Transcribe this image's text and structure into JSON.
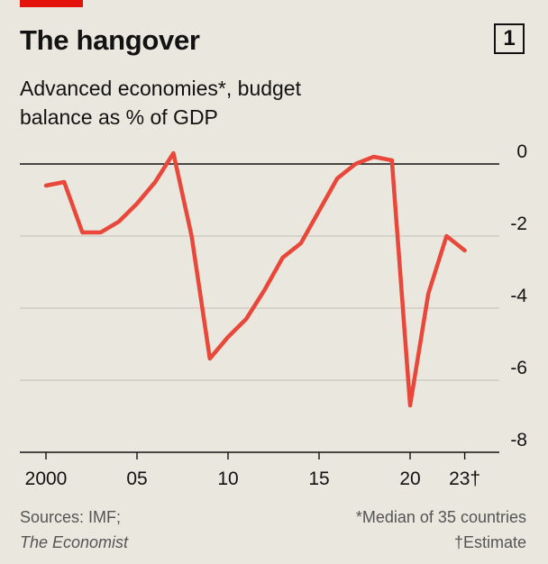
{
  "header": {
    "title": "The hangover",
    "badge": "1",
    "subtitle_line1": "Advanced economies*, budget",
    "subtitle_line2": "balance as % of GDP"
  },
  "footer": {
    "source_line1": "Sources: IMF;",
    "source_line2": "The Economist",
    "note_line1": "*Median of 35 countries",
    "note_line2": "†Estimate"
  },
  "colors": {
    "line": "#e8473a",
    "accent_tag": "#e3120b",
    "background": "#e9e7de",
    "gridline": "#c9c7bf",
    "zero_line": "#121212"
  },
  "chart_data": {
    "type": "line",
    "title": "The hangover",
    "subtitle": "Advanced economies*, budget balance as % of GDP",
    "xlabel": "",
    "ylabel": "",
    "x": [
      2000,
      2001,
      2002,
      2003,
      2004,
      2005,
      2006,
      2007,
      2008,
      2009,
      2010,
      2011,
      2012,
      2013,
      2014,
      2015,
      2016,
      2017,
      2018,
      2019,
      2020,
      2021,
      2022,
      2023
    ],
    "series": [
      {
        "name": "",
        "values": [
          -0.6,
          -0.5,
          -1.9,
          -1.9,
          -1.6,
          -1.1,
          -0.5,
          0.3,
          -2.0,
          -5.4,
          -4.8,
          -4.3,
          -3.5,
          -2.6,
          -2.2,
          -1.3,
          -0.4,
          0.0,
          0.2,
          0.1,
          -6.7,
          -3.6,
          -2.0,
          -2.4
        ]
      }
    ],
    "xlim": [
      1999.5,
      2024.5
    ],
    "ylim": [
      -8,
      0.4
    ],
    "x_ticks": [
      {
        "value": 2000,
        "label": "2000"
      },
      {
        "value": 2005,
        "label": "05"
      },
      {
        "value": 2010,
        "label": "10"
      },
      {
        "value": 2015,
        "label": "15"
      },
      {
        "value": 2020,
        "label": "20"
      },
      {
        "value": 2023,
        "label": "23†"
      }
    ],
    "y_ticks": [
      {
        "value": 0,
        "label": "0"
      },
      {
        "value": -2,
        "label": "-2"
      },
      {
        "value": -4,
        "label": "-4"
      },
      {
        "value": -6,
        "label": "-6"
      },
      {
        "value": -8,
        "label": "-8"
      }
    ],
    "grid": "horizontal",
    "legend": "none"
  }
}
